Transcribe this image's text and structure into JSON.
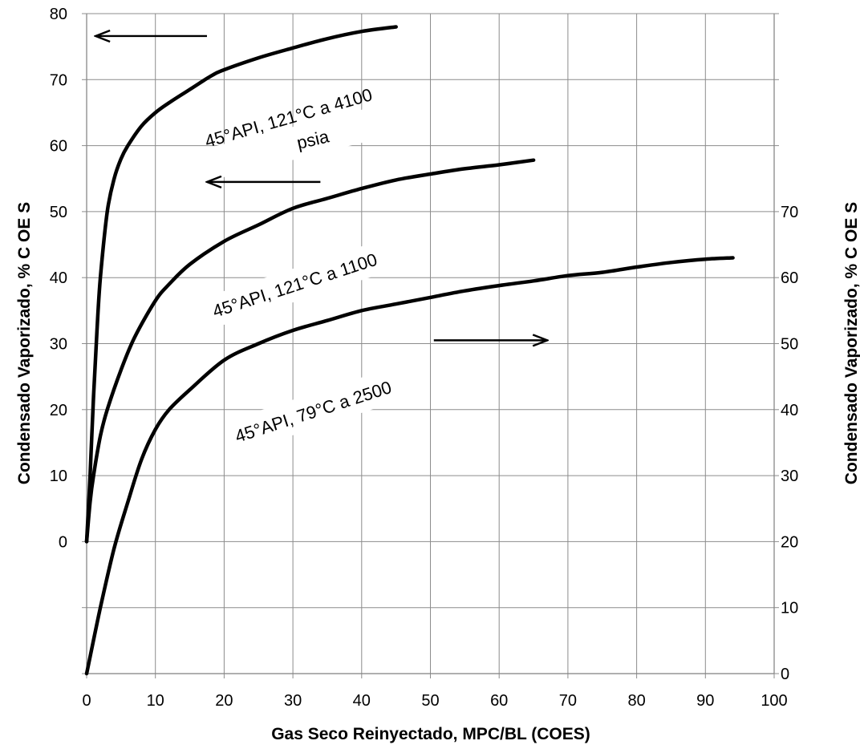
{
  "chart_data": {
    "type": "line",
    "xlabel": "Gas Seco Reinyectado, MPC/BL (COES)",
    "ylabel_left": "Condensado Vaporizado, % C OE S",
    "ylabel_right": "Condensado Vaporizado, % C OE S",
    "xlim": [
      0,
      100
    ],
    "ylim_left": [
      -20,
      80
    ],
    "ylim_right": [
      0,
      100
    ],
    "grid": true,
    "x_ticks": [
      "0",
      "10",
      "20",
      "30",
      "40",
      "50",
      "60",
      "70",
      "80",
      "90",
      "100"
    ],
    "y_left_ticks": [
      {
        "value": 0,
        "label": "0"
      },
      {
        "value": 10,
        "label": "10"
      },
      {
        "value": 20,
        "label": "20"
      },
      {
        "value": 30,
        "label": "30"
      },
      {
        "value": 40,
        "label": "40"
      },
      {
        "value": 50,
        "label": "50"
      },
      {
        "value": 60,
        "label": "60"
      },
      {
        "value": 70,
        "label": "70"
      },
      {
        "value": 80,
        "label": "80"
      }
    ],
    "y_right_ticks": [
      {
        "value": 0,
        "label": "0"
      },
      {
        "value": 10,
        "label": "10"
      },
      {
        "value": 20,
        "label": "20"
      },
      {
        "value": 30,
        "label": "30"
      },
      {
        "value": 40,
        "label": "40"
      },
      {
        "value": 50,
        "label": "50"
      },
      {
        "value": 60,
        "label": "60"
      },
      {
        "value": 70,
        "label": "70"
      }
    ],
    "series": [
      {
        "name": "45°API, 121°C a 4100 psia",
        "axis": "left",
        "x": [
          0,
          0.5,
          1,
          1.5,
          2,
          3,
          4,
          5,
          6,
          8,
          10,
          12,
          15,
          18,
          20,
          25,
          30,
          35,
          40,
          45
        ],
        "y": [
          0,
          10,
          22,
          32,
          40,
          50,
          55,
          58,
          60,
          63,
          65,
          66.5,
          68.5,
          70.5,
          71.5,
          73.3,
          74.8,
          76.2,
          77.3,
          78
        ]
      },
      {
        "name": "45°API, 121°C a 1100",
        "axis": "left",
        "x": [
          0,
          0.5,
          1,
          2,
          3,
          5,
          7,
          10,
          12,
          15,
          20,
          25,
          30,
          35,
          40,
          45,
          50,
          55,
          60,
          65
        ],
        "y": [
          0,
          6,
          10,
          16,
          20,
          26,
          31,
          36.5,
          39,
          42,
          45.5,
          48,
          50.5,
          52,
          53.5,
          54.8,
          55.7,
          56.5,
          57.1,
          57.8
        ]
      },
      {
        "name": "45°API, 79°C a 2500",
        "axis": "right",
        "x": [
          0,
          2,
          4,
          6,
          8,
          10,
          12,
          15,
          20,
          25,
          30,
          35,
          40,
          45,
          50,
          55,
          60,
          65,
          70,
          75,
          80,
          85,
          90,
          94
        ],
        "y": [
          0,
          10,
          19,
          26,
          32.5,
          37,
          40,
          43,
          47.5,
          50,
          52,
          53.5,
          55,
          56,
          57,
          58,
          58.8,
          59.5,
          60.3,
          60.8,
          61.6,
          62.3,
          62.8,
          63
        ]
      }
    ],
    "annotations": {
      "label_a_line1": "45°API, 121°C  a  4100",
      "label_a_line2": "psia",
      "label_b": "45°API, 121°C a  1100",
      "label_c": "45°API,  79°C a 2500"
    },
    "arrows": [
      {
        "x_from": 17.5,
        "x_to": 1.3,
        "y": 76.6,
        "axis": "left",
        "direction": "left"
      },
      {
        "x_from": 34,
        "x_to": 17.5,
        "y": 54.5,
        "axis": "left",
        "direction": "left"
      },
      {
        "x_from": 50.5,
        "x_to": 67,
        "y": 50.5,
        "axis": "right",
        "direction": "right"
      }
    ]
  }
}
